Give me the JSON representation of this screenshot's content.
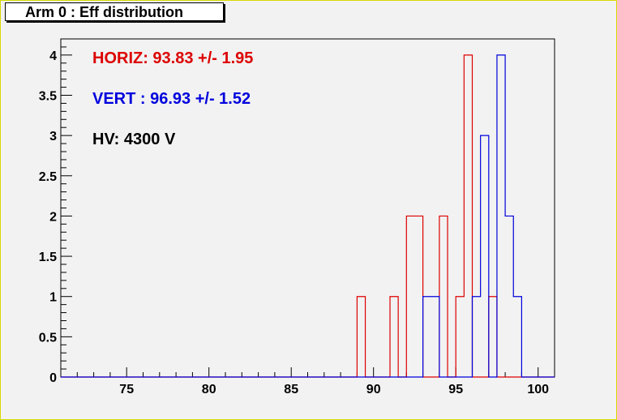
{
  "title": "Arm 0 : Eff distribution",
  "colors": {
    "background": "#f2f2f2",
    "frame": "#d8d800",
    "horiz": "#dd0000",
    "vert": "#0000dd",
    "text": "#000000"
  },
  "annotations": [
    {
      "text": "HORIZ: 93.83 +/- 1.95",
      "color": "#dd0000"
    },
    {
      "text": "VERT : 96.93 +/- 1.52",
      "color": "#0000dd"
    },
    {
      "text": "HV: 4300 V",
      "color": "#000000"
    }
  ],
  "chart_data": {
    "type": "histogram",
    "title": "Arm 0 : Eff distribution",
    "xlabel": "",
    "ylabel": "",
    "xlim": [
      71,
      101
    ],
    "ylim": [
      0,
      4.2
    ],
    "bin_width": 0.5,
    "x_ticks": [
      75,
      80,
      85,
      90,
      95,
      100
    ],
    "y_ticks": [
      0,
      0.5,
      1,
      1.5,
      2,
      2.5,
      3,
      3.5,
      4
    ],
    "y_tick_labels": [
      "0",
      "0.5",
      "1",
      "1.5",
      "2",
      "2.5",
      "3",
      "3.5",
      "4"
    ],
    "grid": false,
    "series": [
      {
        "color": "#dd0000",
        "bins": [
          {
            "x": 89,
            "count": 1
          },
          {
            "x": 91,
            "count": 1
          },
          {
            "x": 92,
            "count": 2
          },
          {
            "x": 92.5,
            "count": 2
          },
          {
            "x": 94,
            "count": 2
          },
          {
            "x": 95,
            "count": 1
          },
          {
            "x": 95.5,
            "count": 4
          },
          {
            "x": 97,
            "count": 1
          }
        ]
      },
      {
        "color": "#0000dd",
        "bins": [
          {
            "x": 93,
            "count": 1
          },
          {
            "x": 93.5,
            "count": 1
          },
          {
            "x": 96,
            "count": 1
          },
          {
            "x": 96.5,
            "count": 3
          },
          {
            "x": 97.5,
            "count": 4
          },
          {
            "x": 98,
            "count": 2
          },
          {
            "x": 98.5,
            "count": 1
          }
        ]
      }
    ]
  }
}
